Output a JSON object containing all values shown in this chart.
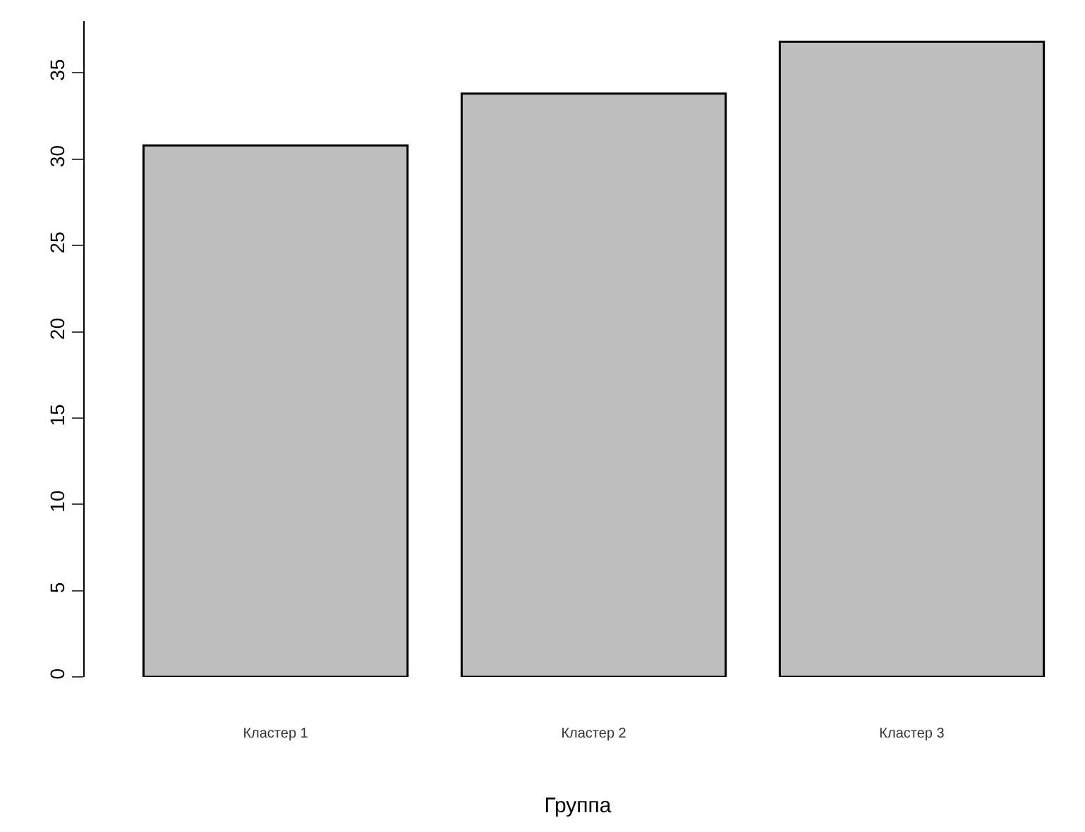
{
  "chart_data": {
    "type": "bar",
    "xlabel": "Группа",
    "categories": [
      "Кластер 1",
      "Кластер 2",
      "Кластер 3"
    ],
    "values": [
      30.8,
      33.8,
      36.8
    ],
    "color": "#bebebe",
    "ylim": [
      0,
      38
    ],
    "yticks": [
      0,
      5,
      10,
      15,
      20,
      25,
      30,
      35
    ]
  }
}
